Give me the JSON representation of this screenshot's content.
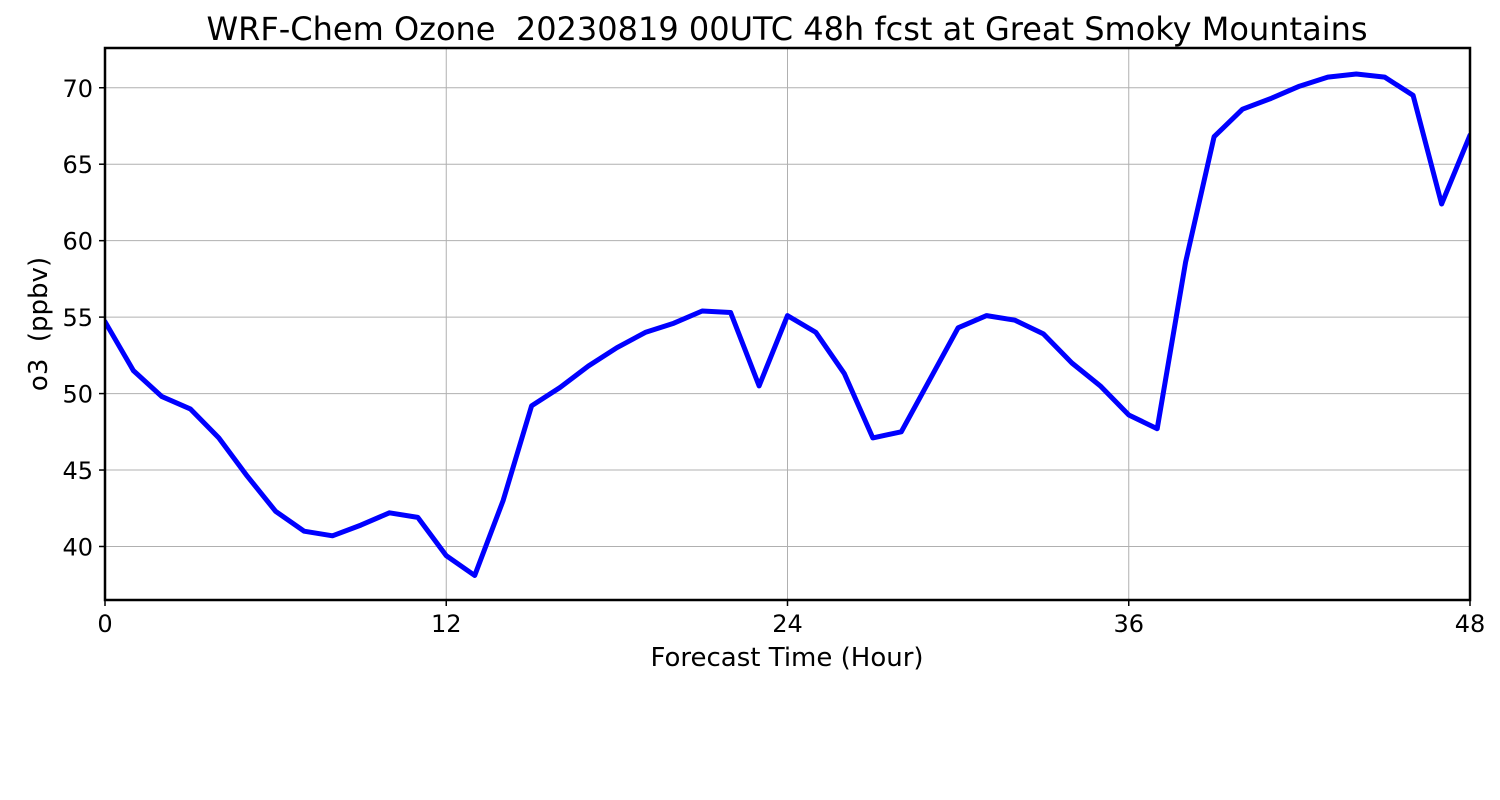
{
  "chart_data": {
    "type": "line",
    "title": "WRF-Chem Ozone  20230819 00UTC 48h fcst at Great Smoky Mountains",
    "xlabel": "Forecast Time (Hour)",
    "ylabel": "o3  (ppbv)",
    "xlim": [
      0,
      48
    ],
    "ylim": [
      36.5,
      72.6
    ],
    "xticks": [
      0,
      12,
      24,
      36,
      48
    ],
    "yticks": [
      40,
      45,
      50,
      55,
      60,
      65,
      70
    ],
    "grid": true,
    "series": [
      {
        "color": "#0000ff",
        "x": [
          0,
          1,
          2,
          3,
          4,
          5,
          6,
          7,
          8,
          9,
          10,
          11,
          12,
          13,
          14,
          15,
          16,
          17,
          18,
          19,
          20,
          21,
          22,
          23,
          24,
          25,
          26,
          27,
          28,
          29,
          30,
          31,
          32,
          33,
          34,
          35,
          36,
          37,
          38,
          39,
          40,
          41,
          42,
          43,
          44,
          45,
          46,
          47,
          48
        ],
        "values": [
          54.7,
          51.5,
          49.8,
          49.0,
          47.1,
          44.6,
          42.3,
          41.0,
          40.7,
          41.4,
          42.2,
          41.9,
          39.4,
          38.1,
          43.0,
          49.2,
          50.4,
          51.8,
          53.0,
          54.0,
          54.6,
          55.4,
          55.3,
          50.5,
          55.1,
          54.0,
          51.3,
          47.1,
          47.5,
          50.9,
          54.3,
          55.1,
          54.8,
          53.9,
          52.0,
          50.5,
          48.6,
          47.7,
          58.6,
          66.8,
          68.6,
          69.3,
          70.1,
          70.7,
          70.9,
          70.7,
          69.5,
          62.4,
          66.9
        ]
      }
    ]
  }
}
